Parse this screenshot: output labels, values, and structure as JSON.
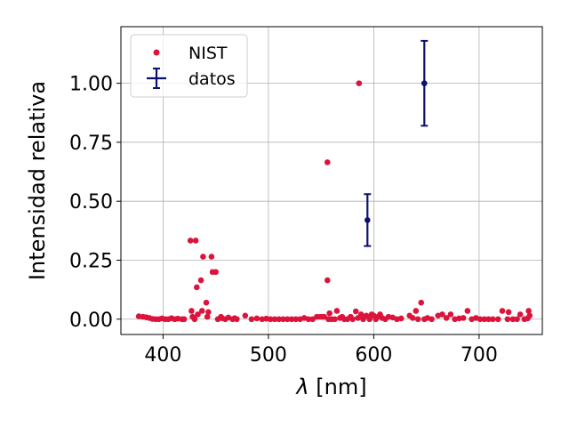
{
  "chart_data": {
    "type": "scatter",
    "xlabel_symbol": "λ",
    "xlabel_unit": " [nm]",
    "ylabel": "Intensidad relativa",
    "xlim": [
      360,
      760
    ],
    "ylim": [
      -0.065,
      1.24
    ],
    "x_ticks": [
      400,
      500,
      600,
      700
    ],
    "x_tick_labels": [
      "400",
      "500",
      "600",
      "700"
    ],
    "y_ticks": [
      0.0,
      0.25,
      0.5,
      0.75,
      1.0
    ],
    "y_tick_labels": [
      "0.00",
      "0.25",
      "0.50",
      "0.75",
      "1.00"
    ],
    "grid": true,
    "legend_position": "upper-left",
    "series": [
      {
        "name": "NIST",
        "type": "scatter",
        "color": "#dc143c",
        "points": [
          [
            377,
            0.012
          ],
          [
            381,
            0.01
          ],
          [
            384,
            0.008
          ],
          [
            387,
            0.005
          ],
          [
            390,
            0.001
          ],
          [
            393,
            0.0
          ],
          [
            396,
            0.0
          ],
          [
            399,
            0.003
          ],
          [
            402,
            0.0
          ],
          [
            405,
            0.0
          ],
          [
            408,
            0.004
          ],
          [
            411,
            0.0
          ],
          [
            414,
            0.002
          ],
          [
            418,
            0.0
          ],
          [
            420,
            0.0
          ],
          [
            426,
            0.333
          ],
          [
            427,
            0.035
          ],
          [
            428,
            0.01
          ],
          [
            430,
            0.0
          ],
          [
            431,
            0.333
          ],
          [
            432,
            0.135
          ],
          [
            433,
            0.02
          ],
          [
            436,
            0.165
          ],
          [
            437,
            0.035
          ],
          [
            438,
            0.265
          ],
          [
            441,
            0.07
          ],
          [
            442,
            0.01
          ],
          [
            443,
            0.03
          ],
          [
            446,
            0.265
          ],
          [
            447,
            0.2
          ],
          [
            450,
            0.2
          ],
          [
            452,
            0.0
          ],
          [
            455,
            0.01
          ],
          [
            456,
            0.004
          ],
          [
            459,
            0.0
          ],
          [
            462,
            0.007
          ],
          [
            466,
            0.0
          ],
          [
            468,
            0.004
          ],
          [
            470,
            0.0
          ],
          [
            478,
            0.015
          ],
          [
            484,
            0.0
          ],
          [
            489,
            0.003
          ],
          [
            494,
            0.0
          ],
          [
            498,
            0.002
          ],
          [
            502,
            0.0
          ],
          [
            506,
            0.0
          ],
          [
            510,
            0.0
          ],
          [
            514,
            0.0
          ],
          [
            518,
            0.0
          ],
          [
            522,
            0.0
          ],
          [
            526,
            0.0
          ],
          [
            530,
            0.0
          ],
          [
            534,
            0.005
          ],
          [
            538,
            0.0
          ],
          [
            542,
            0.0
          ],
          [
            546,
            0.01
          ],
          [
            549,
            0.01
          ],
          [
            551,
            0.01
          ],
          [
            553,
            0.01
          ],
          [
            556,
            0.665
          ],
          [
            556,
            0.165
          ],
          [
            557,
            0.0
          ],
          [
            558,
            0.025
          ],
          [
            560,
            0.0
          ],
          [
            563,
            0.0
          ],
          [
            565,
            0.035
          ],
          [
            568,
            0.005
          ],
          [
            570,
            0.01
          ],
          [
            572,
            0.0
          ],
          [
            575,
            0.0
          ],
          [
            578,
            0.01
          ],
          [
            580,
            0.0
          ],
          [
            583,
            0.033
          ],
          [
            585,
            0.005
          ],
          [
            586,
            1.0
          ],
          [
            588,
            0.02
          ],
          [
            590,
            0.0
          ],
          [
            593,
            0.015
          ],
          [
            596,
            0.0
          ],
          [
            598,
            0.02
          ],
          [
            600,
            0.015
          ],
          [
            602,
            0.0
          ],
          [
            604,
            0.01
          ],
          [
            606,
            0.02
          ],
          [
            608,
            0.005
          ],
          [
            611,
            0.0
          ],
          [
            614,
            0.01
          ],
          [
            618,
            0.007
          ],
          [
            622,
            0.0
          ],
          [
            626,
            0.003
          ],
          [
            634,
            0.015
          ],
          [
            637,
            0.005
          ],
          [
            640,
            0.035
          ],
          [
            642,
            0.0
          ],
          [
            645,
            0.07
          ],
          [
            648,
            0.0
          ],
          [
            651,
            0.005
          ],
          [
            655,
            0.0
          ],
          [
            661,
            0.015
          ],
          [
            665,
            0.02
          ],
          [
            669,
            0.005
          ],
          [
            673,
            0.02
          ],
          [
            677,
            0.0
          ],
          [
            681,
            0.003
          ],
          [
            685,
            0.005
          ],
          [
            689,
            0.035
          ],
          [
            693,
            0.0
          ],
          [
            697,
            0.005
          ],
          [
            701,
            0.0
          ],
          [
            705,
            0.0
          ],
          [
            709,
            0.0
          ],
          [
            713,
            0.0
          ],
          [
            718,
            0.0
          ],
          [
            722,
            0.035
          ],
          [
            727,
            0.0
          ],
          [
            728,
            0.03
          ],
          [
            732,
            0.0
          ],
          [
            736,
            0.0
          ],
          [
            739,
            0.02
          ],
          [
            743,
            0.0
          ],
          [
            746,
            0.003
          ],
          [
            747,
            0.035
          ],
          [
            748,
            0.015
          ]
        ]
      },
      {
        "name": "datos",
        "type": "errorbar",
        "color": "#0b1170",
        "points": [
          {
            "x": 594,
            "y": 0.42,
            "yerr": 0.11
          },
          {
            "x": 648,
            "y": 1.0,
            "yerr": 0.18
          }
        ]
      }
    ]
  }
}
